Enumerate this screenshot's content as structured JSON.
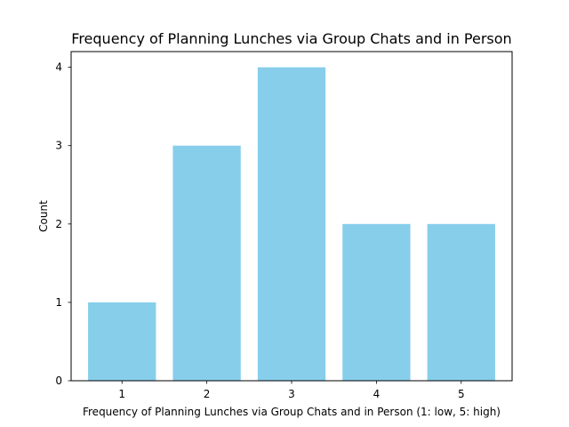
{
  "chart_data": {
    "type": "bar",
    "title": "Frequency of Planning Lunches via Group Chats and in Person",
    "xlabel": "Frequency of Planning Lunches via Group Chats and in Person (1: low, 5: high)",
    "ylabel": "Count",
    "categories": [
      "1",
      "2",
      "3",
      "4",
      "5"
    ],
    "values": [
      1,
      3,
      4,
      2,
      2
    ],
    "yticks": [
      "0",
      "1",
      "2",
      "3",
      "4"
    ],
    "ylim": [
      0,
      4.2
    ],
    "xlim": [
      0.4,
      5.6
    ],
    "bar_color": "#87ceeb",
    "grid": false,
    "legend": "none"
  }
}
